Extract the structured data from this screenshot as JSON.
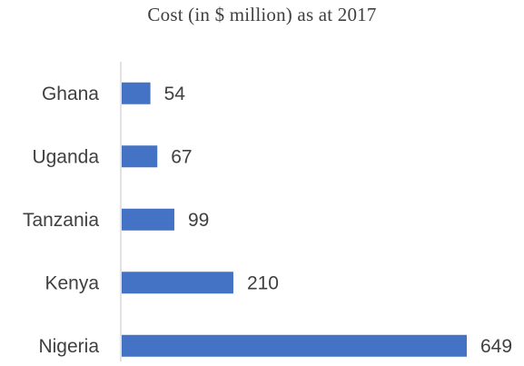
{
  "chart_data": {
    "type": "bar",
    "orientation": "horizontal",
    "title": "Cost (in $ million) as at 2017",
    "categories": [
      "Ghana",
      "Uganda",
      "Tanzania",
      "Kenya",
      "Nigeria"
    ],
    "values": [
      54,
      67,
      99,
      210,
      649
    ],
    "data_labels": [
      "54",
      "67",
      "99",
      "210",
      "649"
    ],
    "xlabel": "",
    "ylabel": "",
    "xlim": [
      0,
      649
    ],
    "grid": false,
    "legend": "none",
    "bar_color": "#4472C4",
    "axis_color": "#D9D9D9"
  }
}
